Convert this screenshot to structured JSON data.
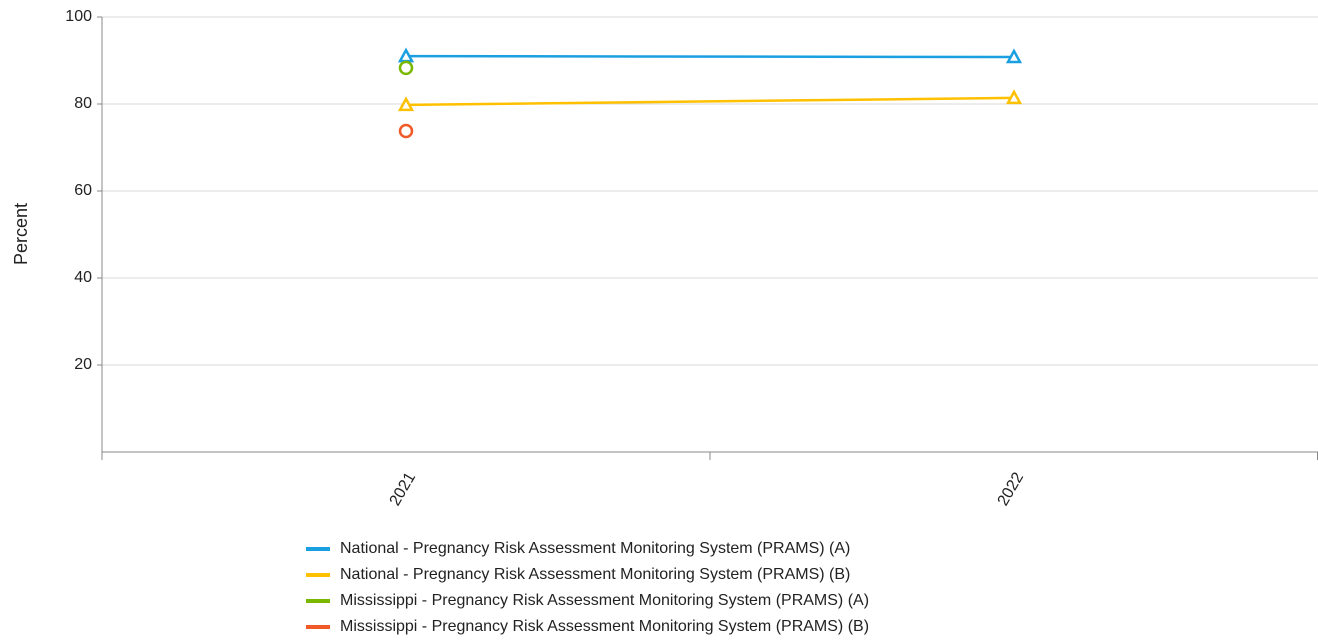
{
  "chart_data": {
    "type": "line",
    "y_label": "Percent",
    "categories": [
      "2021",
      "2022"
    ],
    "ylim": [
      0,
      100
    ],
    "yticks": [
      20,
      40,
      60,
      80,
      100
    ],
    "grid": true,
    "series": [
      {
        "name": "National - Pregnancy Risk Assessment Monitoring System (PRAMS) (A)",
        "color": "#1a9fe0",
        "marker": "triangle",
        "values": [
          91.0,
          90.8
        ]
      },
      {
        "name": "National - Pregnancy Risk Assessment Monitoring System (PRAMS) (B)",
        "color": "#ffc000",
        "marker": "triangle",
        "values": [
          79.8,
          81.4
        ]
      },
      {
        "name": "Mississippi - Pregnancy Risk Assessment Monitoring System (PRAMS) (A)",
        "color": "#7ab800",
        "marker": "circle",
        "values": [
          88.3,
          null
        ]
      },
      {
        "name": "Mississippi - Pregnancy Risk Assessment Monitoring System (PRAMS) (B)",
        "color": "#f05a28",
        "marker": "circle",
        "values": [
          73.8,
          null
        ]
      }
    ]
  }
}
